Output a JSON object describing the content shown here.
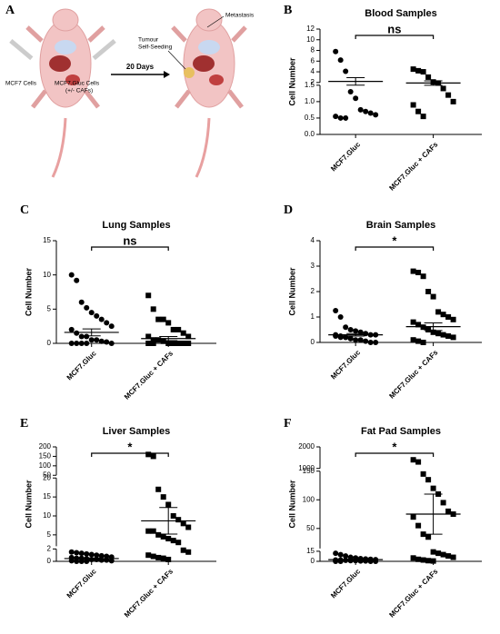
{
  "diagram": {
    "panel": "A",
    "left_label": "MCF7 Cells",
    "right_label_lines": [
      "MCF7.Gluc Cells",
      "(+/- CAFs)"
    ],
    "arrow_label": "20 Days",
    "seeding_lines": [
      "Tumour",
      "Self-Seeding"
    ],
    "metastasis": "Metastasis"
  },
  "chart_data": [
    {
      "type": "dotplot",
      "panel": "B",
      "title": "Blood Samples",
      "ylabel": "Cell Number",
      "categories": [
        "MCF7.Gluc",
        "MCF7.Gluc + CAFs"
      ],
      "significance": "ns",
      "axis_segments": [
        {
          "ylim": [
            0,
            1.5
          ],
          "yticks": [
            {
              "value": 0,
              "label": "0.0"
            },
            0.5,
            {
              "value": 1,
              "label": "1.0"
            },
            1.5
          ]
        },
        {
          "ylim": [
            2,
            12
          ],
          "yticks": [
            2,
            4,
            6,
            8,
            10,
            12
          ]
        }
      ],
      "groups": [
        {
          "marker": "circle",
          "values": [
            7.8,
            6.2,
            4.1,
            1.3,
            1.1,
            0.75,
            0.7,
            0.65,
            0.6,
            0.55,
            0.5,
            0.5
          ],
          "mean": 2.2,
          "sem": 0.7
        },
        {
          "marker": "square",
          "values": [
            4.5,
            4.2,
            4.0,
            3.0,
            2.1,
            1.9,
            1.4,
            1.2,
            1.0,
            0.9,
            0.7,
            0.55
          ],
          "mean": 1.9,
          "sem": 0.4
        }
      ]
    },
    {
      "type": "dotplot",
      "panel": "C",
      "title": "Lung Samples",
      "ylabel": "Cell Number",
      "categories": [
        "MCF7.Gluc",
        "MCF7.Gluc + CAFs"
      ],
      "significance": "ns",
      "ylim": [
        0,
        15
      ],
      "yticks": [
        0,
        5,
        10,
        15
      ],
      "groups": [
        {
          "marker": "circle",
          "values": [
            10,
            9.2,
            6,
            5.2,
            4.5,
            4,
            3.5,
            3,
            2.5,
            2,
            1.5,
            1,
            1,
            0.5,
            0.5,
            0.3,
            0.2,
            0,
            0,
            0,
            0,
            0
          ],
          "mean": 1.6,
          "sem": 0.5
        },
        {
          "marker": "square",
          "values": [
            7,
            5,
            3.5,
            3.5,
            3,
            2,
            2,
            1.5,
            1,
            1,
            0.5,
            0.5,
            0.3,
            0,
            0,
            0,
            0,
            0,
            0,
            0
          ],
          "mean": 0.7,
          "sem": 0.3
        }
      ]
    },
    {
      "type": "dotplot",
      "panel": "D",
      "title": "Brain Samples",
      "ylabel": "Cell Number",
      "categories": [
        "MCF7.Gluc",
        "MCF7.Gluc + CAFs"
      ],
      "significance": "*",
      "ylim": [
        0,
        4
      ],
      "yticks": [
        0,
        1,
        2,
        3,
        4
      ],
      "groups": [
        {
          "marker": "circle",
          "values": [
            1.25,
            1.0,
            0.6,
            0.5,
            0.45,
            0.4,
            0.35,
            0.3,
            0.3,
            0.25,
            0.2,
            0.2,
            0.15,
            0.1,
            0.1,
            0.05,
            0,
            0,
            0.3,
            0.25,
            0.2,
            0.15
          ],
          "mean": 0.3,
          "sem": 0.05
        },
        {
          "marker": "square",
          "values": [
            2.8,
            2.75,
            2.6,
            2.0,
            1.8,
            1.2,
            1.1,
            1.0,
            0.9,
            0.8,
            0.7,
            0.6,
            0.5,
            0.4,
            0.35,
            0.3,
            0.25,
            0.2,
            0.1,
            0.05,
            0
          ],
          "mean": 0.62,
          "sem": 0.15
        }
      ]
    },
    {
      "type": "dotplot",
      "panel": "E",
      "title": "Liver Samples",
      "ylabel": "Cell Number",
      "categories": [
        "MCF7.Gluc",
        "MCF7.Gluc + CAFs"
      ],
      "significance": "*",
      "axis_segments": [
        {
          "ylim": [
            0,
            2
          ],
          "yticks": [
            0,
            2
          ]
        },
        {
          "ylim": [
            2,
            20
          ],
          "yticks": [
            5,
            10,
            15,
            20
          ]
        },
        {
          "ylim": [
            50,
            200
          ],
          "yticks": [
            50,
            100,
            150,
            200
          ]
        }
      ],
      "groups": [
        {
          "marker": "circle",
          "values": [
            1.5,
            1.4,
            1.3,
            1.2,
            1.1,
            1.0,
            0.9,
            0.8,
            0.7,
            0.6,
            0.5,
            0.5,
            0.4,
            0.3,
            0.3,
            0.2,
            0.2,
            0.1,
            0.1,
            0,
            0,
            0
          ],
          "mean": 0.45,
          "sem": 0.1
        },
        {
          "marker": "square",
          "values": [
            160,
            150,
            17,
            15,
            13,
            10,
            9,
            8,
            7,
            6,
            6,
            5,
            4.5,
            4,
            3.5,
            3,
            1.8,
            1.5,
            1,
            0.8,
            0.6,
            0.5,
            0.3
          ],
          "mean": 8.7,
          "sem": 3.5
        }
      ]
    },
    {
      "type": "dotplot",
      "panel": "F",
      "title": "Fat Pad Samples",
      "ylabel": "Cell Number",
      "categories": [
        "MCF7.Gluc",
        "MCF7.Gluc + CAFs"
      ],
      "significance": "*",
      "axis_segments": [
        {
          "ylim": [
            0,
            15
          ],
          "yticks": [
            0,
            15
          ]
        },
        {
          "ylim": [
            15,
            150
          ],
          "yticks": [
            50,
            100,
            150
          ]
        },
        {
          "ylim": [
            1000,
            2000
          ],
          "yticks": [
            1000,
            2000
          ]
        }
      ],
      "groups": [
        {
          "marker": "circle",
          "values": [
            12,
            10,
            8,
            6,
            5,
            4,
            3.5,
            3,
            2.5,
            2,
            2,
            1.5,
            1,
            1,
            0.5,
            0.5,
            0,
            0,
            0,
            0
          ],
          "mean": 2.5,
          "sem": 0.7
        },
        {
          "marker": "square",
          "values": [
            1400,
            1300,
            145,
            135,
            120,
            110,
            95,
            80,
            75,
            70,
            55,
            40,
            35,
            14,
            12,
            10,
            8,
            6,
            5,
            3,
            2,
            1,
            0.5
          ],
          "mean": 75,
          "sem": 35
        }
      ]
    }
  ]
}
